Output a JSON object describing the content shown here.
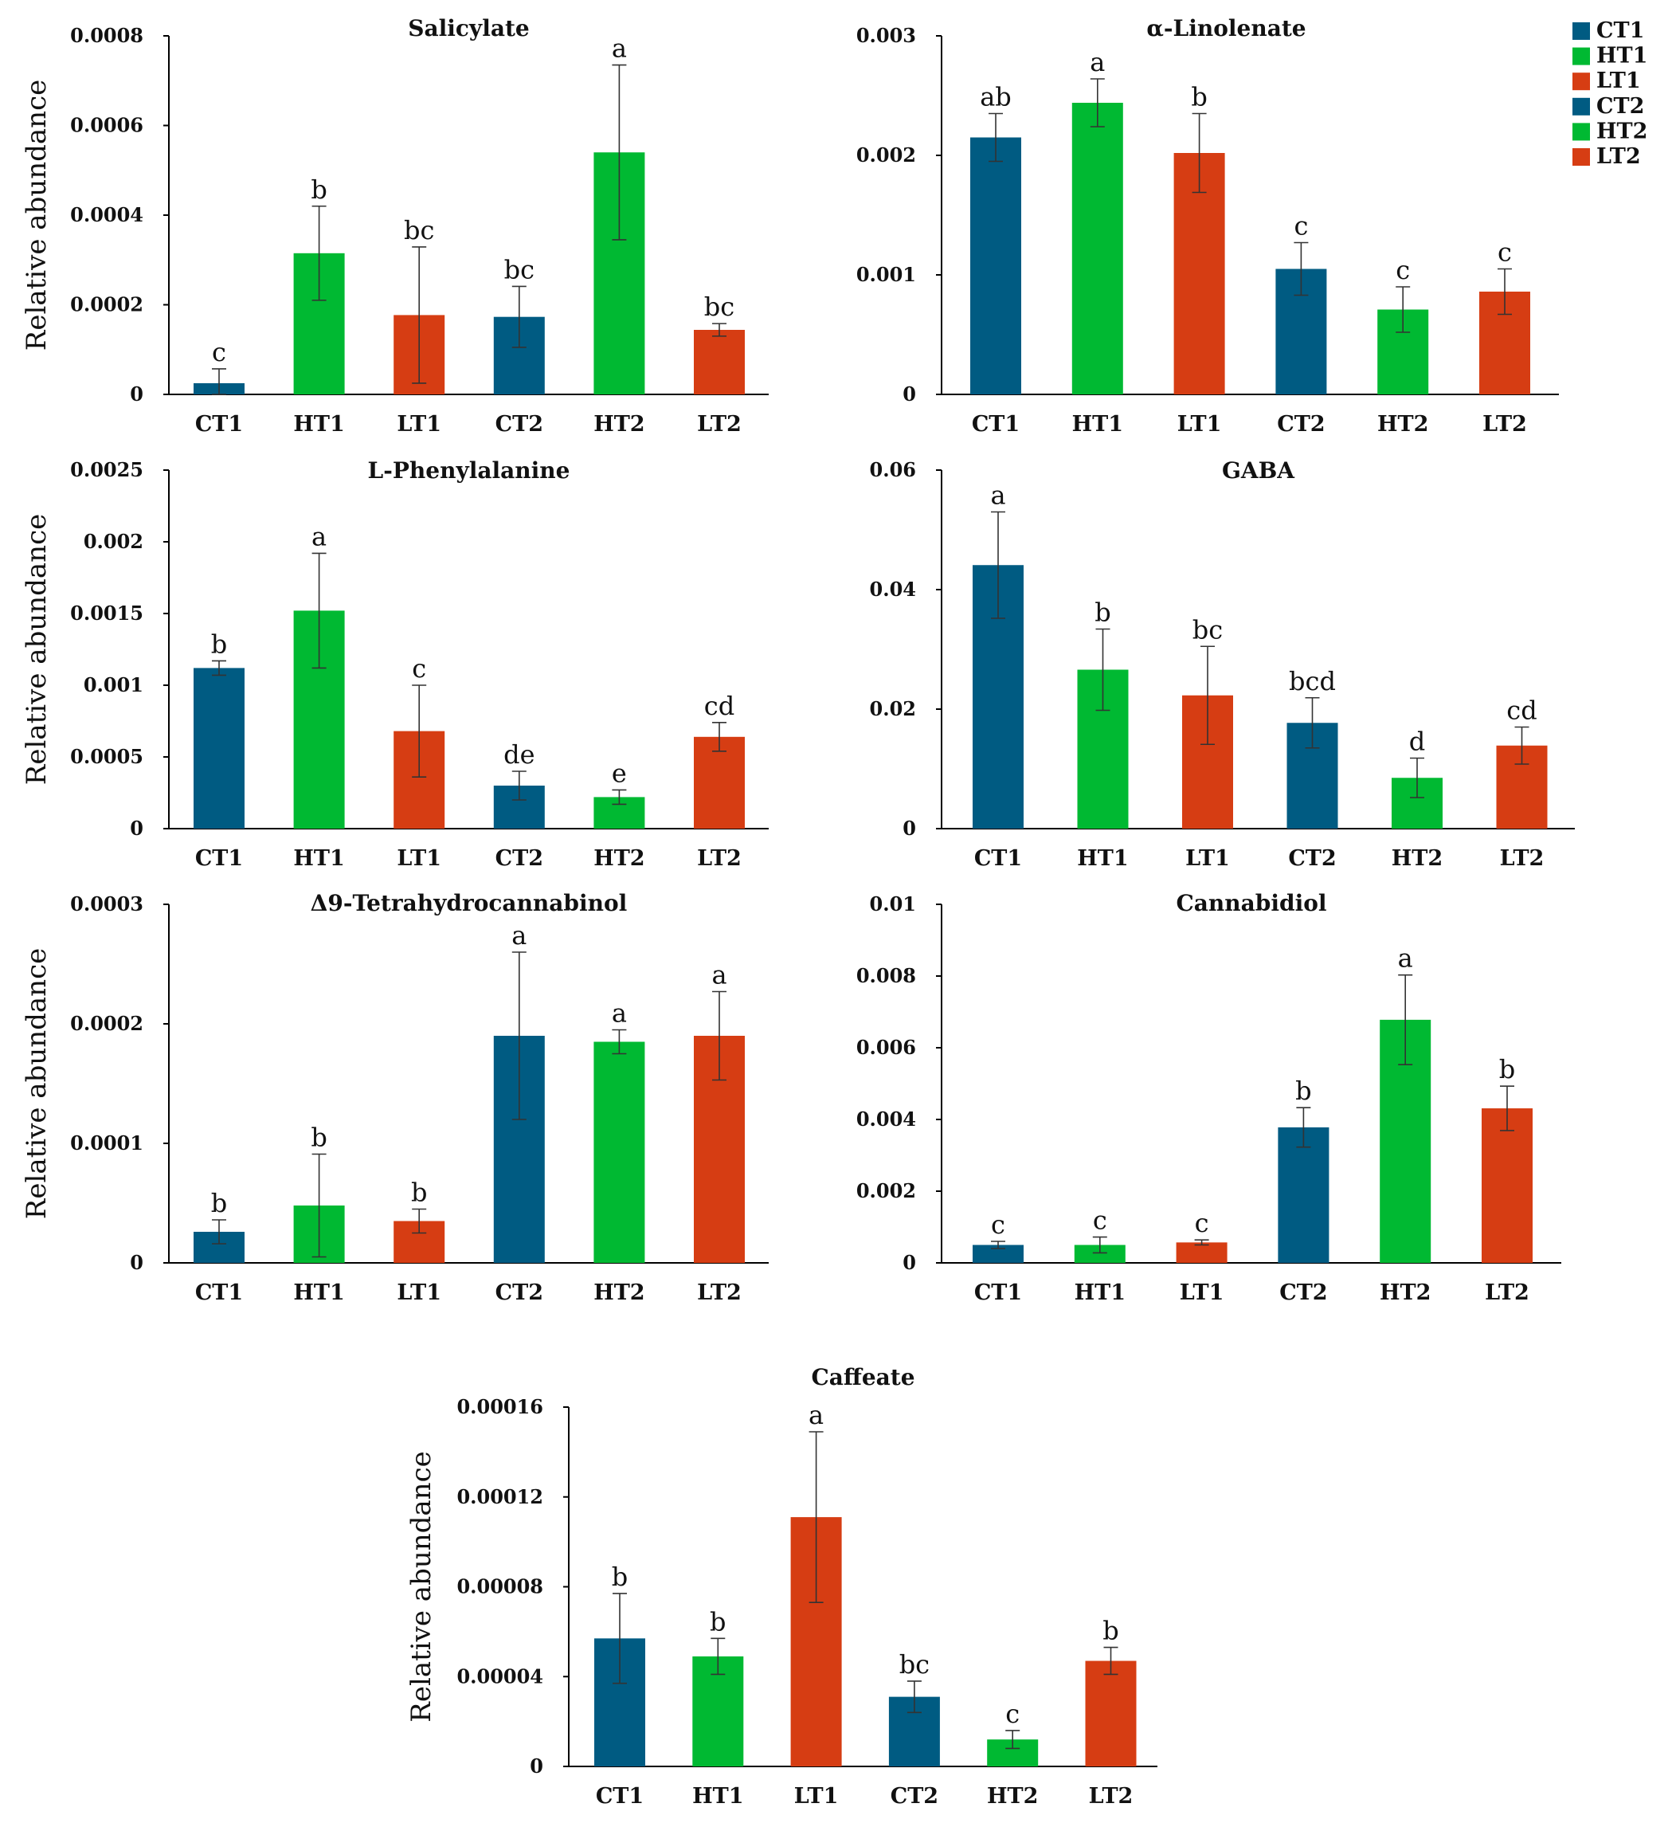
{
  "legend": [
    {
      "label": "CT1",
      "color": "#005b82"
    },
    {
      "label": "HT1",
      "color": "#00b932"
    },
    {
      "label": "LT1",
      "color": "#d63d13"
    },
    {
      "label": "CT2",
      "color": "#005b82"
    },
    {
      "label": "HT2",
      "color": "#00b932"
    },
    {
      "label": "LT2",
      "color": "#d63d13"
    }
  ],
  "chart_data": [
    {
      "type": "bar",
      "title": "Salicylate",
      "ylabel": "Relative abundance",
      "categories": [
        "CT1",
        "HT1",
        "LT1",
        "CT2",
        "HT2",
        "LT2"
      ],
      "values": [
        2.5e-05,
        0.000315,
        0.000177,
        0.000173,
        0.00054,
        0.000144
      ],
      "errors": [
        3.2e-05,
        0.000105,
        0.000152,
        6.8e-05,
        0.000195,
        1.4e-05
      ],
      "letters": [
        "c",
        "b",
        "bc",
        "bc",
        "a",
        "bc"
      ],
      "ylim": [
        0,
        0.0008
      ],
      "yticks": [
        0,
        0.0002,
        0.0004,
        0.0006,
        0.0008
      ],
      "ytick_labels": [
        "0",
        "0.0002",
        "0.0004",
        "0.0006",
        "0.0008"
      ]
    },
    {
      "type": "bar",
      "title": "α-Linolenate",
      "ylabel": "",
      "categories": [
        "CT1",
        "HT1",
        "LT1",
        "CT2",
        "HT2",
        "LT2"
      ],
      "values": [
        0.00215,
        0.00244,
        0.00202,
        0.00105,
        0.00071,
        0.00086
      ],
      "errors": [
        0.0002,
        0.0002,
        0.00033,
        0.00022,
        0.00019,
        0.00019
      ],
      "letters": [
        "ab",
        "a",
        "b",
        "c",
        "c",
        "c"
      ],
      "ylim": [
        0,
        0.003
      ],
      "yticks": [
        0,
        0.001,
        0.002,
        0.003
      ],
      "ytick_labels": [
        "0",
        "0.001",
        "0.002",
        "0.003"
      ]
    },
    {
      "type": "bar",
      "title": "L-Phenylalanine",
      "ylabel": "Relative abundance",
      "categories": [
        "CT1",
        "HT1",
        "LT1",
        "CT2",
        "HT2",
        "LT2"
      ],
      "values": [
        0.00112,
        0.00152,
        0.00068,
        0.0003,
        0.00022,
        0.00064
      ],
      "errors": [
        5e-05,
        0.0004,
        0.00032,
        0.0001,
        5e-05,
        0.0001
      ],
      "letters": [
        "b",
        "a",
        "c",
        "de",
        "e",
        "cd"
      ],
      "ylim": [
        0,
        0.0025
      ],
      "yticks": [
        0,
        0.0005,
        0.001,
        0.0015,
        0.002,
        0.0025
      ],
      "ytick_labels": [
        "0",
        "0.0005",
        "0.001",
        "0.0015",
        "0.002",
        "0.0025"
      ]
    },
    {
      "type": "bar",
      "title": "GABA",
      "ylabel": "",
      "categories": [
        "CT1",
        "HT1",
        "LT1",
        "CT2",
        "HT2",
        "LT2"
      ],
      "values": [
        0.0441,
        0.0266,
        0.0223,
        0.0177,
        0.0085,
        0.0139
      ],
      "errors": [
        0.0089,
        0.0068,
        0.0082,
        0.0042,
        0.0033,
        0.0031
      ],
      "letters": [
        "a",
        "b",
        "bc",
        "bcd",
        "d",
        "cd"
      ],
      "ylim": [
        0,
        0.06
      ],
      "yticks": [
        0,
        0.02,
        0.04,
        0.06
      ],
      "ytick_labels": [
        "0",
        "0.02",
        "0.04",
        "0.06"
      ]
    },
    {
      "type": "bar",
      "title": "Δ9-Tetrahydrocannabinol",
      "ylabel": "Relative abundance",
      "categories": [
        "CT1",
        "HT1",
        "LT1",
        "CT2",
        "HT2",
        "LT2"
      ],
      "values": [
        2.6e-05,
        4.8e-05,
        3.5e-05,
        0.00019,
        0.000185,
        0.00019
      ],
      "errors": [
        1e-05,
        4.3e-05,
        1e-05,
        7e-05,
        1e-05,
        3.7e-05
      ],
      "letters": [
        "b",
        "b",
        "b",
        "a",
        "a",
        "a"
      ],
      "ylim": [
        0,
        0.0003
      ],
      "yticks": [
        0,
        0.0001,
        0.0002,
        0.0003
      ],
      "ytick_labels": [
        "0",
        "0.0001",
        "0.0002",
        "0.0003"
      ]
    },
    {
      "type": "bar",
      "title": "Cannabidiol",
      "ylabel": "",
      "categories": [
        "CT1",
        "HT1",
        "LT1",
        "CT2",
        "HT2",
        "LT2"
      ],
      "values": [
        0.0005,
        0.0005,
        0.00057,
        0.00378,
        0.00678,
        0.00431
      ],
      "errors": [
        0.0001,
        0.00022,
        7e-05,
        0.00055,
        0.00125,
        0.00062
      ],
      "letters": [
        "c",
        "c",
        "c",
        "b",
        "a",
        "b"
      ],
      "ylim": [
        0,
        0.01
      ],
      "yticks": [
        0,
        0.002,
        0.004,
        0.006,
        0.008,
        0.01
      ],
      "ytick_labels": [
        "0",
        "0.002",
        "0.004",
        "0.006",
        "0.008",
        "0.01"
      ]
    },
    {
      "type": "bar",
      "title": "Caffeate",
      "ylabel": "Relative abundance",
      "categories": [
        "CT1",
        "HT1",
        "LT1",
        "CT2",
        "HT2",
        "LT2"
      ],
      "values": [
        5.7e-05,
        4.9e-05,
        0.000111,
        3.1e-05,
        1.2e-05,
        4.7e-05
      ],
      "errors": [
        2e-05,
        8e-06,
        3.8e-05,
        7e-06,
        4e-06,
        6e-06
      ],
      "letters": [
        "b",
        "b",
        "a",
        "bc",
        "c",
        "b"
      ],
      "ylim": [
        0,
        0.00016
      ],
      "yticks": [
        0,
        4e-05,
        8e-05,
        0.00012,
        0.00016
      ],
      "ytick_labels": [
        "0",
        "0.00004",
        "0.00008",
        "0.00012",
        "0.00016"
      ]
    }
  ]
}
